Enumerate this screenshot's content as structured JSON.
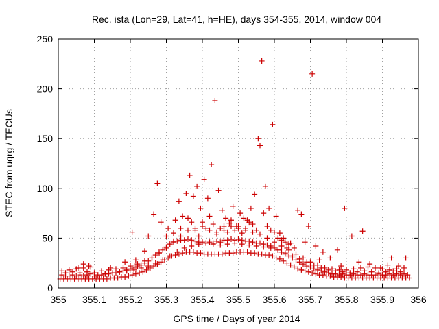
{
  "chart_data": {
    "type": "scatter",
    "title": "Rec. ista (Lon=29, Lat=41, h=HE), days 354-355, 2014, window 004",
    "xlabel": "GPS time / Days of year 2014",
    "ylabel": "STEC from uqrg / TECUs",
    "xlim": [
      355.0,
      356.0
    ],
    "ylim": [
      0,
      250
    ],
    "xticks": [
      "355",
      "355.1",
      "355.2",
      "355.3",
      "355.4",
      "355.5",
      "355.6",
      "355.7",
      "355.8",
      "355.9",
      "356"
    ],
    "yticks": [
      "0",
      "50",
      "100",
      "150",
      "200",
      "250"
    ],
    "grid": true,
    "marker": "+",
    "color": "#cc0000",
    "series": [
      {
        "x": [
          355.005,
          355.015,
          355.025,
          355.035,
          355.045,
          355.055,
          355.065,
          355.075,
          355.085,
          355.095,
          355.105,
          355.115,
          355.125,
          355.135,
          355.145,
          355.155,
          355.165,
          355.175,
          355.185,
          355.195,
          355.205,
          355.215,
          355.225,
          355.235,
          355.245,
          355.255,
          355.265,
          355.275,
          355.285,
          355.295,
          355.305,
          355.315,
          355.325,
          355.335,
          355.345,
          355.355,
          355.365,
          355.375,
          355.385,
          355.395,
          355.405,
          355.415,
          355.425,
          355.435,
          355.445,
          355.455,
          355.465,
          355.475,
          355.485,
          355.495,
          355.505,
          355.515,
          355.525,
          355.535,
          355.545,
          355.555,
          355.565,
          355.575,
          355.585,
          355.595,
          355.605,
          355.615,
          355.625,
          355.635,
          355.645,
          355.655,
          355.665,
          355.675,
          355.685,
          355.695,
          355.705,
          355.715,
          355.725,
          355.735,
          355.745,
          355.755,
          355.765,
          355.775,
          355.785,
          355.795,
          355.805,
          355.815,
          355.825,
          355.835,
          355.845,
          355.855,
          355.865,
          355.875,
          355.885,
          355.895,
          355.905,
          355.915,
          355.925,
          355.935,
          355.945,
          355.955,
          355.965,
          355.975
        ],
        "y": [
          9,
          9,
          9,
          9,
          9,
          9,
          9,
          9,
          9,
          9,
          9,
          9,
          9,
          9,
          10,
          10,
          10,
          11,
          11,
          12,
          13,
          14,
          15,
          16,
          18,
          20,
          22,
          24,
          26,
          28,
          30,
          32,
          33,
          34,
          35,
          36,
          36,
          36,
          35,
          35,
          34,
          34,
          34,
          34,
          34,
          34,
          35,
          35,
          35,
          36,
          36,
          36,
          36,
          35,
          35,
          34,
          34,
          33,
          33,
          32,
          30,
          29,
          27,
          25,
          23,
          21,
          19,
          18,
          17,
          16,
          15,
          14,
          13,
          13,
          12,
          12,
          11,
          11,
          11,
          10,
          10,
          10,
          10,
          10,
          10,
          10,
          10,
          10,
          10,
          10,
          10,
          10,
          10,
          10,
          10,
          10,
          10,
          10
        ]
      },
      {
        "x": [
          355.01,
          355.02,
          355.03,
          355.04,
          355.05,
          355.06,
          355.07,
          355.08,
          355.09,
          355.1,
          355.11,
          355.12,
          355.13,
          355.14,
          355.15,
          355.16,
          355.17,
          355.18,
          355.19,
          355.2,
          355.21,
          355.22,
          355.23,
          355.24,
          355.25,
          355.26,
          355.27,
          355.28,
          355.29,
          355.3,
          355.31,
          355.32,
          355.33,
          355.34,
          355.35,
          355.36,
          355.37,
          355.38,
          355.39,
          355.4,
          355.41,
          355.42,
          355.43,
          355.44,
          355.45,
          355.46,
          355.47,
          355.48,
          355.49,
          355.5,
          355.51,
          355.52,
          355.53,
          355.54,
          355.55,
          355.56,
          355.57,
          355.58,
          355.59,
          355.6,
          355.61,
          355.62,
          355.63,
          355.64,
          355.65,
          355.66,
          355.67,
          355.68,
          355.69,
          355.7,
          355.71,
          355.72,
          355.73,
          355.74,
          355.75,
          355.76,
          355.77,
          355.78,
          355.79,
          355.8,
          355.81,
          355.82,
          355.83,
          355.84,
          355.85,
          355.86,
          355.87,
          355.88,
          355.89,
          355.9,
          355.91,
          355.92,
          355.93,
          355.94,
          355.95,
          355.96,
          355.97
        ],
        "y": [
          13,
          12,
          12,
          13,
          12,
          13,
          12,
          13,
          14,
          12,
          13,
          13,
          14,
          14,
          15,
          15,
          16,
          17,
          18,
          19,
          20,
          22,
          23,
          25,
          27,
          30,
          33,
          36,
          38,
          41,
          44,
          46,
          47,
          48,
          48,
          49,
          48,
          47,
          46,
          46,
          45,
          46,
          45,
          47,
          46,
          48,
          48,
          49,
          48,
          49,
          48,
          47,
          47,
          46,
          45,
          45,
          44,
          43,
          42,
          40,
          38,
          36,
          34,
          32,
          30,
          28,
          26,
          24,
          22,
          21,
          19,
          18,
          17,
          16,
          15,
          14,
          14,
          13,
          14,
          13,
          13,
          14,
          13,
          13,
          14,
          13,
          13,
          13,
          14,
          13,
          13,
          14,
          13,
          14,
          13,
          14,
          13
        ]
      },
      {
        "x": [
          355.01,
          355.03,
          355.05,
          355.07,
          355.09,
          355.12,
          355.14,
          355.16,
          355.18,
          355.2,
          355.22,
          355.24,
          355.26,
          355.28,
          355.3,
          355.32,
          355.34,
          355.36,
          355.38,
          355.4,
          355.42,
          355.44,
          355.46,
          355.48,
          355.5,
          355.52,
          355.54,
          355.56,
          355.58,
          355.6,
          355.62,
          355.64,
          355.66,
          355.68,
          355.7,
          355.72,
          355.74,
          355.76,
          355.78,
          355.8,
          355.82,
          355.84,
          355.86,
          355.88,
          355.9,
          355.92,
          355.94,
          355.96
        ],
        "y": [
          17,
          18,
          19,
          20,
          21,
          17,
          18,
          19,
          20,
          22,
          24,
          27,
          30,
          35,
          40,
          47,
          52,
          58,
          60,
          62,
          58,
          56,
          58,
          62,
          60,
          58,
          56,
          54,
          50,
          46,
          42,
          38,
          34,
          30,
          26,
          23,
          20,
          19,
          18,
          18,
          19,
          20,
          21,
          20,
          19,
          18,
          19,
          20
        ]
      },
      {
        "x": [
          355.02,
          355.04,
          355.06,
          355.08,
          355.1,
          355.13,
          355.15,
          355.17,
          355.19,
          355.21,
          355.23,
          355.25,
          355.27,
          355.29,
          355.31,
          355.33,
          355.35,
          355.37,
          355.39,
          355.41,
          355.43,
          355.45,
          355.47,
          355.49,
          355.51,
          355.53,
          355.55,
          355.57,
          355.59,
          355.61,
          355.63,
          355.65,
          355.67,
          355.69,
          355.71,
          355.73,
          355.75,
          355.77,
          355.79,
          355.81,
          355.83,
          355.85,
          355.87,
          355.89,
          355.91,
          355.93,
          355.95
        ],
        "y": [
          15,
          16,
          15,
          16,
          15,
          14,
          15,
          16,
          17,
          18,
          20,
          22,
          25,
          28,
          32,
          36,
          40,
          42,
          44,
          45,
          44,
          43,
          44,
          45,
          44,
          43,
          42,
          41,
          40,
          38,
          35,
          32,
          29,
          26,
          23,
          20,
          18,
          17,
          16,
          15,
          16,
          17,
          16,
          15,
          16,
          17,
          16
        ]
      },
      {
        "x": [
          355.055,
          355.07,
          355.085,
          355.145,
          355.185,
          355.205,
          355.215,
          355.24,
          355.25,
          355.265,
          355.275,
          355.285,
          355.305,
          355.325,
          355.335,
          355.345,
          355.355,
          355.365,
          355.375,
          355.385,
          355.395,
          355.405,
          355.415,
          355.425,
          355.435,
          355.445,
          355.455,
          355.465,
          355.475,
          355.485,
          355.495,
          355.505,
          355.515,
          355.525,
          355.535,
          355.545,
          355.555,
          355.565,
          355.575,
          355.585,
          355.595,
          355.605,
          355.615,
          355.625,
          355.635,
          355.645,
          355.655,
          355.665,
          355.675,
          355.685,
          355.695,
          355.705,
          355.715,
          355.725,
          355.735,
          355.755,
          355.775,
          355.785,
          355.795,
          355.815,
          355.835,
          355.845,
          355.865,
          355.895,
          355.915,
          355.925,
          355.945,
          355.965
        ],
        "y": [
          20,
          24,
          22,
          20,
          26,
          56,
          28,
          37,
          52,
          74,
          105,
          66,
          60,
          68,
          87,
          72,
          95,
          113,
          92,
          102,
          80,
          109,
          90,
          124,
          188,
          98,
          78,
          70,
          65,
          82,
          62,
          75,
          70,
          68,
          80,
          94,
          150,
          228,
          102,
          80,
          164,
          72,
          55,
          50,
          40,
          45,
          40,
          78,
          74,
          46,
          62,
          215,
          42,
          28,
          36,
          30,
          38,
          22,
          80,
          52,
          26,
          57,
          24,
          20,
          23,
          30,
          22,
          30
        ]
      },
      {
        "x": [
          355.3,
          355.32,
          355.34,
          355.36,
          355.37,
          355.38,
          355.39,
          355.4,
          355.41,
          355.42,
          355.43,
          355.44,
          355.45,
          355.46,
          355.47,
          355.48,
          355.49,
          355.5,
          355.51,
          355.52,
          355.53,
          355.54,
          355.55,
          355.56,
          355.57,
          355.58,
          355.59,
          355.6,
          355.61,
          355.62,
          355.63,
          355.64
        ],
        "y": [
          52,
          55,
          60,
          70,
          66,
          58,
          52,
          66,
          60,
          72,
          64,
          54,
          60,
          62,
          56,
          68,
          58,
          62,
          55,
          60,
          66,
          64,
          58,
          143,
          75,
          62,
          58,
          56,
          50,
          48,
          46,
          44
        ]
      }
    ]
  }
}
